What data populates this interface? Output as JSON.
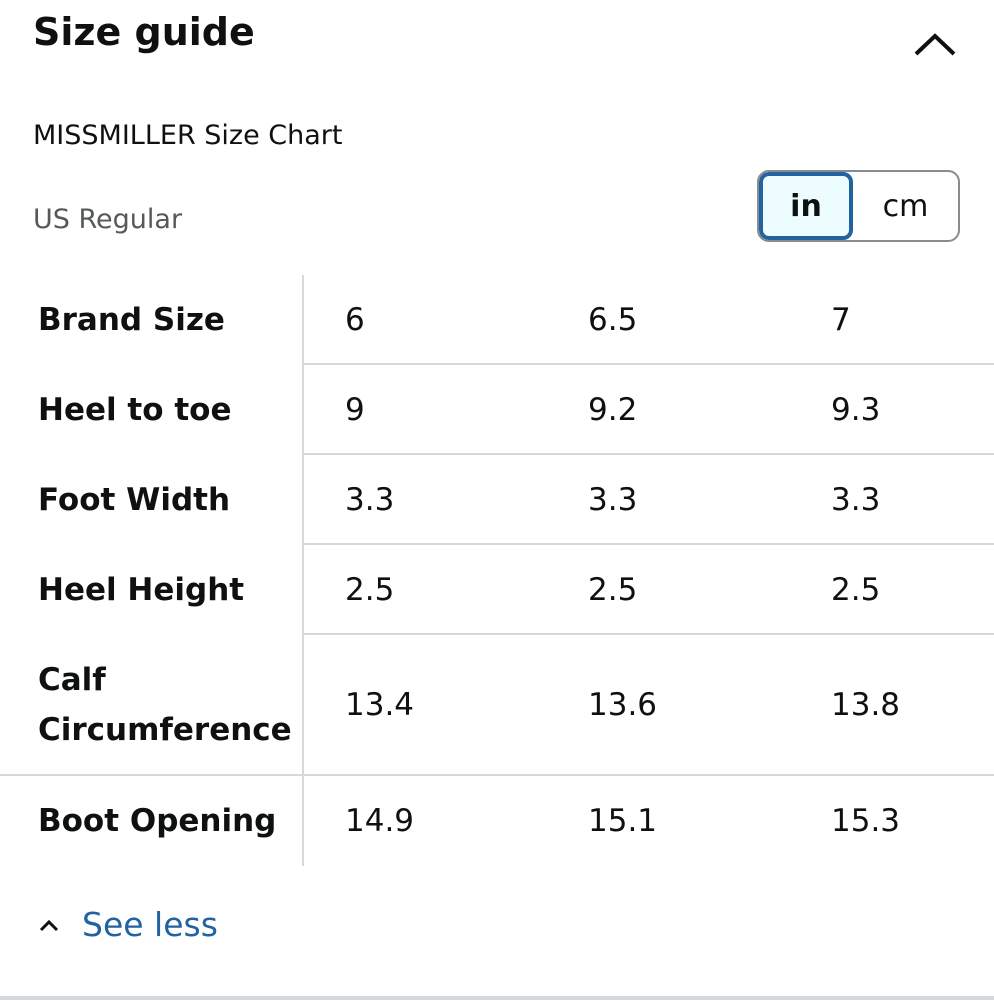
{
  "header": {
    "title": "Size guide"
  },
  "chart_name": "MISSMILLER Size Chart",
  "region": "US Regular",
  "unit_toggle": {
    "options": [
      "in",
      "cm"
    ],
    "selected": "in"
  },
  "table": {
    "rows": [
      {
        "label": "Brand Size",
        "values": [
          "6",
          "6.5",
          "7"
        ]
      },
      {
        "label": "Heel to toe",
        "values": [
          "9",
          "9.2",
          "9.3"
        ]
      },
      {
        "label": "Foot Width",
        "values": [
          "3.3",
          "3.3",
          "3.3"
        ]
      },
      {
        "label": "Heel Height",
        "values": [
          "2.5",
          "2.5",
          "2.5"
        ]
      },
      {
        "label": "Calf Circumference",
        "values": [
          "13.4",
          "13.6",
          "13.8"
        ]
      },
      {
        "label": "Boot Opening",
        "values": [
          "14.9",
          "15.1",
          "15.3"
        ]
      }
    ]
  },
  "footer": {
    "link": "See less"
  }
}
